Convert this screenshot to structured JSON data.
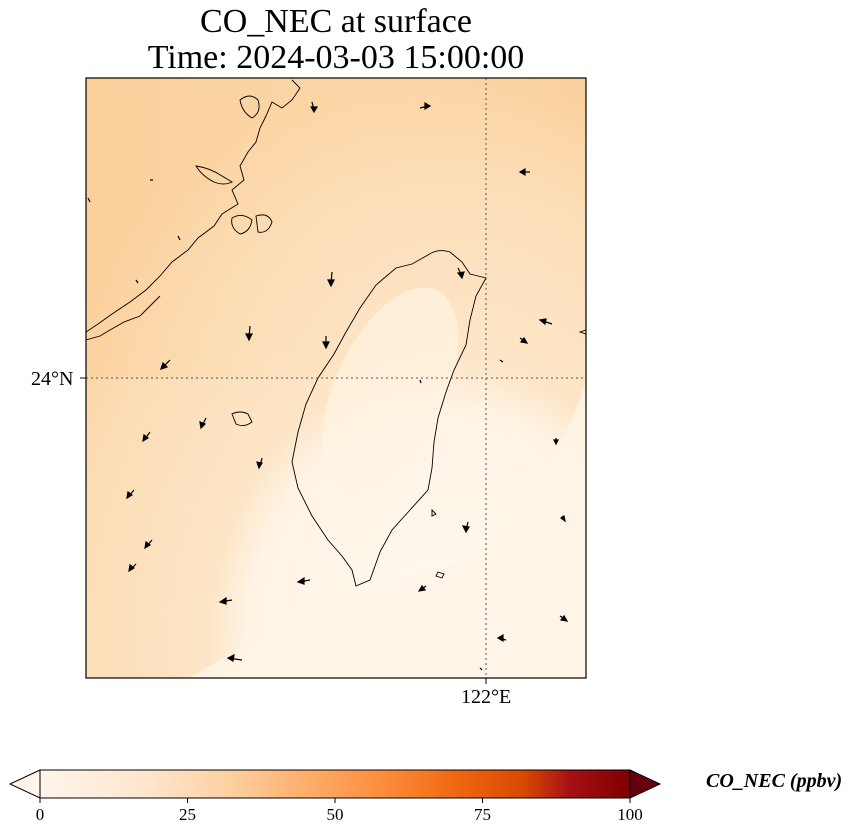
{
  "title": {
    "line1": "CO_NEC at surface",
    "line2": "Time: 2024-03-03 15:00:00"
  },
  "map": {
    "gridline_lat_label": "24°N",
    "gridline_lon_label": "122°E",
    "field_colors": {
      "low": "#fff5e8",
      "mid": "#fde3c0",
      "high": "#fbd2a0",
      "coast": "#000000"
    },
    "wind_vectors": "black arrows"
  },
  "colorbar": {
    "label": "CO_NEC (ppbv)",
    "ticks": [
      "0",
      "25",
      "50",
      "75",
      "100"
    ],
    "min": 0,
    "max": 100,
    "colormap": [
      "#fff5eb",
      "#fdd9b4",
      "#fdae6b",
      "#f16913",
      "#d94801",
      "#a50f15",
      "#67000d"
    ]
  }
}
